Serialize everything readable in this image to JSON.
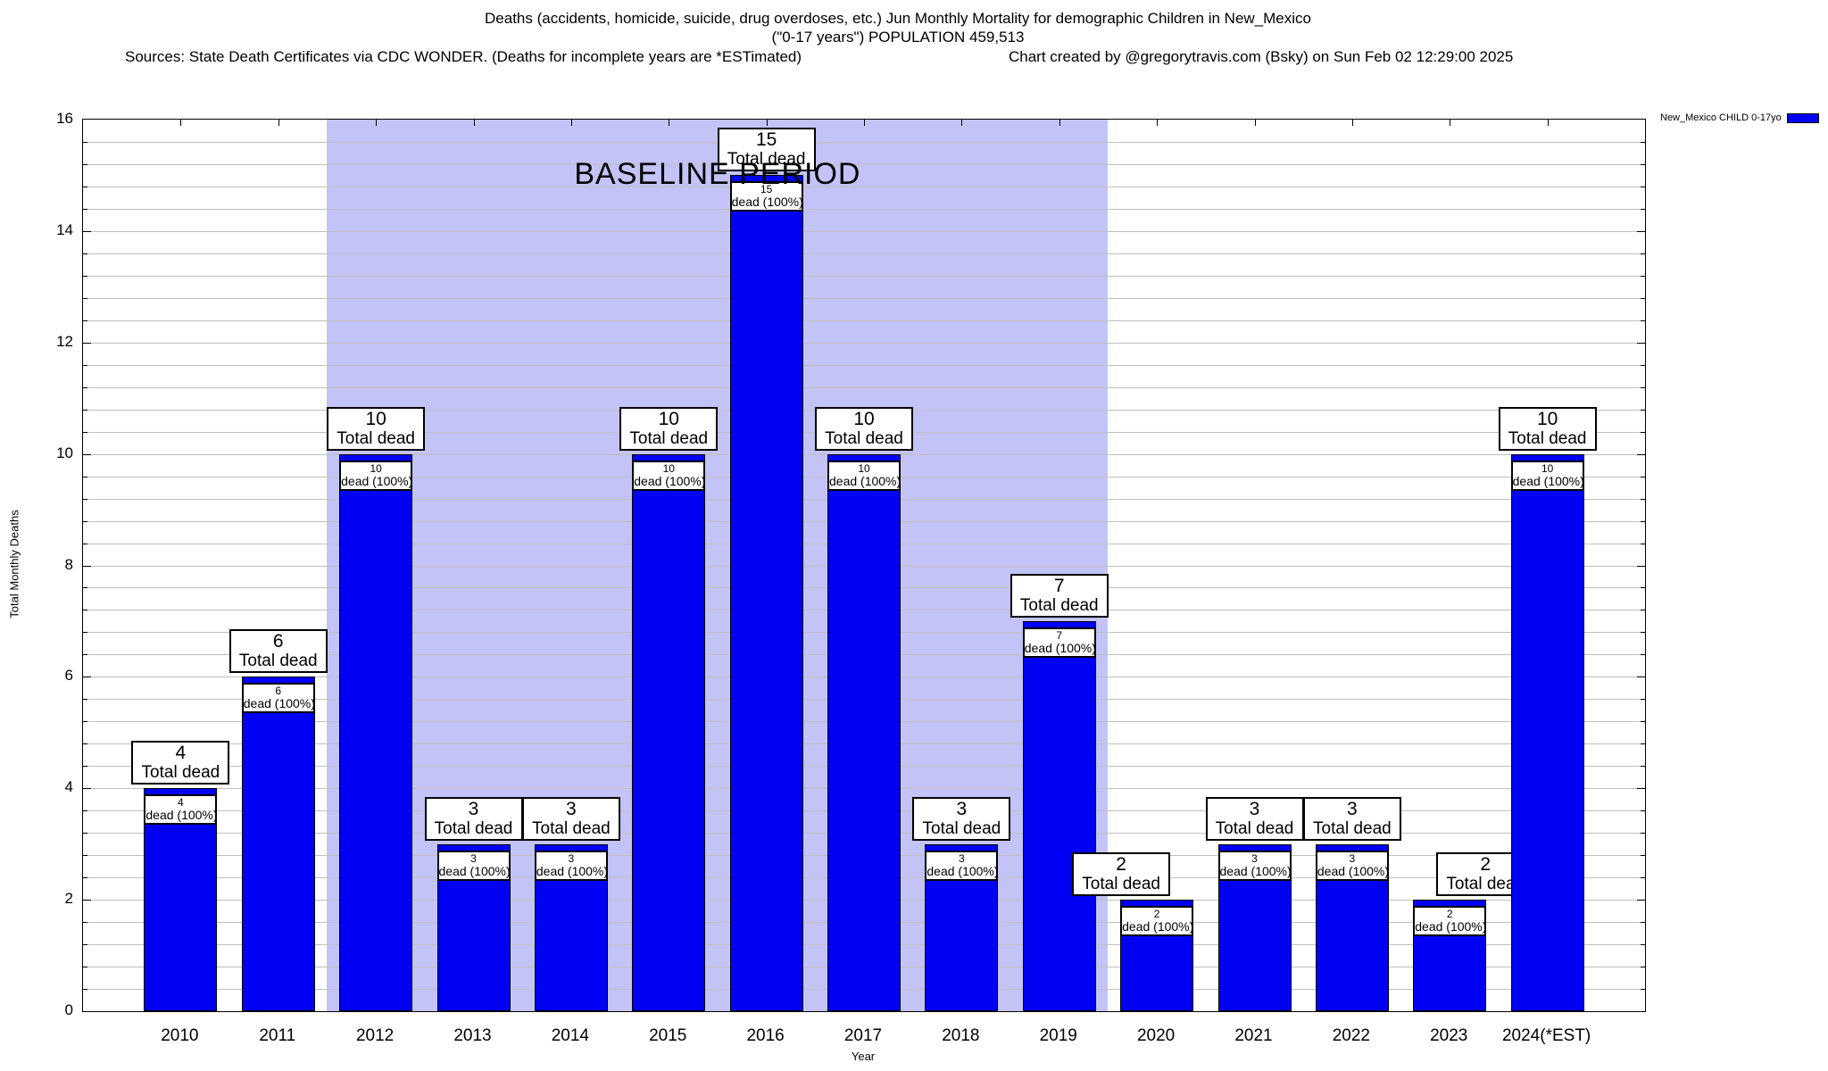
{
  "chart_data": {
    "type": "bar",
    "title": "Deaths (accidents, homicide, suicide, drug overdoses, etc.) Jun Monthly Mortality for demographic Children in New_Mexico",
    "subtitle": "(\"0-17 years\") POPULATION 459,513",
    "source_note": "Sources: State Death Certificates via CDC WONDER. (Deaths for incomplete years are *ESTimated)",
    "credit_note": "Chart created by @gregorytravis.com (Bsky) on Sun Feb 02 12:29:00 2025",
    "xlabel": "Year",
    "ylabel": "Total Monthly Deaths",
    "categories": [
      "2010",
      "2011",
      "2012",
      "2013",
      "2014",
      "2015",
      "2016",
      "2017",
      "2018",
      "2019",
      "2020",
      "2021",
      "2022",
      "2023",
      "2024(*EST)"
    ],
    "values": [
      4,
      6,
      10,
      3,
      3,
      10,
      15,
      10,
      3,
      7,
      2,
      3,
      3,
      2,
      10
    ],
    "ylim": [
      0,
      16
    ],
    "yticks": [
      0,
      2,
      4,
      6,
      8,
      10,
      12,
      14,
      16
    ],
    "ytick_step": 2,
    "minor_grid_step": 0.4,
    "x_axis_range": [
      2009,
      2025
    ],
    "grid_on": true,
    "bar_color": "#0000f2",
    "grid_color": "#bfbfbf",
    "annotations": {
      "top_box_line2": "Total dead",
      "on_bar_box_line2": "dead (100%)"
    },
    "top_box_x_offsets": {
      "2020": -40,
      "2023": 40
    },
    "baseline_period": {
      "label": "BASELINE PERIOD",
      "x_start": 2011.5,
      "x_end": 2019.5,
      "color": "#c3c3f7"
    },
    "legend": {
      "label": "New_Mexico CHILD 0-17yo",
      "color": "#0000f2",
      "position": "top-right-outside"
    }
  }
}
